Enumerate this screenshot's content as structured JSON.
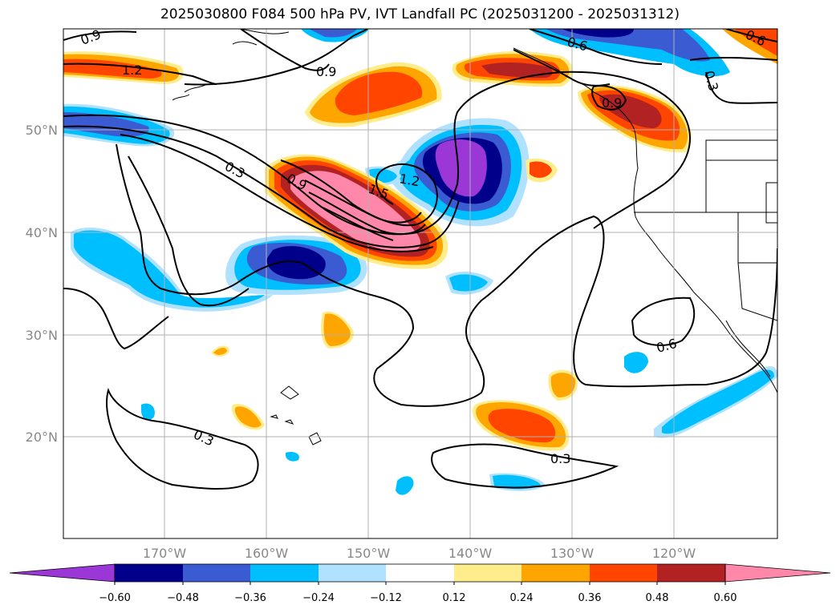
{
  "title": "2025030800 F084 500 hPa PV, IVT Landfall PC (2025031200 - 2025031312)",
  "lat_labels": [
    "50°N",
    "40°N",
    "30°N",
    "20°N"
  ],
  "lon_labels": [
    "170°W",
    "160°W",
    "150°W",
    "140°W",
    "130°W",
    "120°W"
  ],
  "contour_labels": [
    "0.9",
    "1.2",
    "0.9",
    "0.6",
    "0.6",
    "0.3",
    "0.9",
    "0.3",
    "0.9",
    "1.5",
    "1.2",
    "0.3",
    "0.3",
    "0.6"
  ],
  "colorbar": {
    "ticks": [
      "−0.60",
      "−0.48",
      "−0.36",
      "−0.24",
      "−0.12",
      "0.12",
      "0.24",
      "0.36",
      "0.48",
      "0.60"
    ],
    "colors": [
      "#9a37d6",
      "#00008b",
      "#3a5bd1",
      "#00bfff",
      "#b0e2ff",
      "#ffffff",
      "#ffec8b",
      "#ffa500",
      "#ff4500",
      "#b22222",
      "#ff88aa"
    ]
  },
  "chart_data": {
    "type": "heatmap",
    "title": "2025030800 F084 500 hPa PV, IVT Landfall PC (2025031200 - 2025031312)",
    "xlabel": "",
    "ylabel": "",
    "lon_ticks_deg": [
      -170,
      -160,
      -150,
      -140,
      -130,
      -120
    ],
    "lat_ticks_deg": [
      50,
      40,
      30,
      20
    ],
    "lon_range": [
      -180,
      -110
    ],
    "lat_range": [
      10,
      60
    ],
    "color_levels": [
      -0.6,
      -0.48,
      -0.36,
      -0.24,
      -0.12,
      0.12,
      0.24,
      0.36,
      0.48,
      0.6
    ],
    "contour_levels": [
      0.3,
      0.6,
      0.9,
      1.2,
      1.5
    ]
  }
}
